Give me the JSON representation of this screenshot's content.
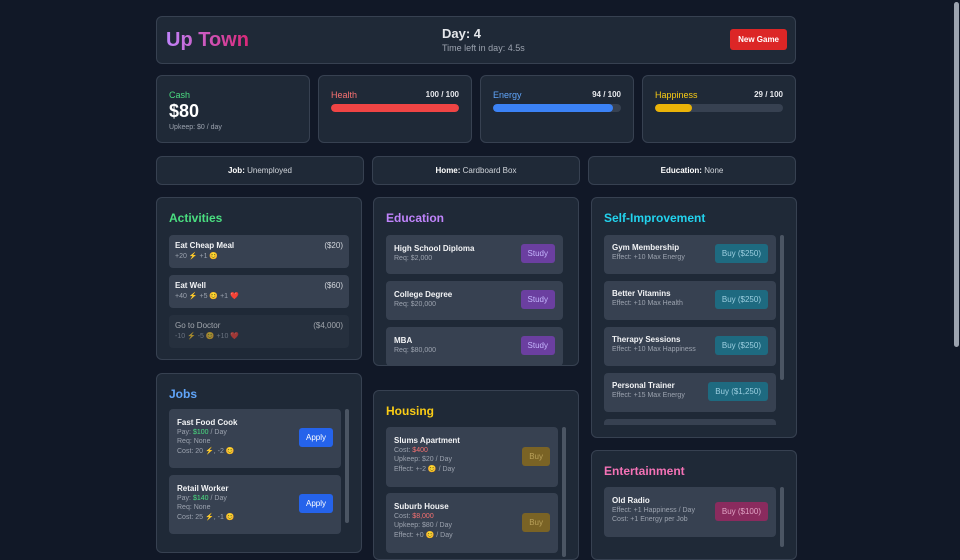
{
  "header": {
    "title": "Up Town",
    "day": "Day: 4",
    "time_left": "Time left in day: 4.5s",
    "new_game": "New Game"
  },
  "stats": {
    "cash": {
      "label": "Cash",
      "value": "$80",
      "upkeep": "Upkeep: $0 / day"
    },
    "health": {
      "label": "Health",
      "value": "100 / 100",
      "percent": 100,
      "color": "#ef4444"
    },
    "energy": {
      "label": "Energy",
      "value": "94 / 100",
      "percent": 94,
      "color": "#3b82f6"
    },
    "happiness": {
      "label": "Happiness",
      "value": "29 / 100",
      "percent": 29,
      "color": "#eab308"
    }
  },
  "info": {
    "job_label": "Job:",
    "job": "Unemployed",
    "home_label": "Home:",
    "home": "Cardboard Box",
    "edu_label": "Education:",
    "edu": "None"
  },
  "activities": {
    "title": "Activities",
    "items": [
      {
        "name": "Eat Cheap Meal",
        "cost": "($20)",
        "effect": "+20 ⚡ +1 😊"
      },
      {
        "name": "Eat Well",
        "cost": "($60)",
        "effect": "+40 ⚡ +5 😊 +1 ❤️"
      },
      {
        "name": "Go to Doctor",
        "cost": "($4,000)",
        "effect": "-10 ⚡ -5 😊 +10 ❤️"
      }
    ]
  },
  "jobs": {
    "title": "Jobs",
    "items": [
      {
        "name": "Fast Food Cook",
        "pay_label": "Pay:",
        "pay": "$100",
        "pay_unit": "/ Day",
        "req": "Req: None",
        "cost": "Cost: 20 ⚡, -2 😊",
        "button": "Apply"
      },
      {
        "name": "Retail Worker",
        "pay_label": "Pay:",
        "pay": "$140",
        "pay_unit": "/ Day",
        "req": "Req: None",
        "cost": "Cost: 25 ⚡, -1 😊",
        "button": "Apply"
      }
    ]
  },
  "education": {
    "title": "Education",
    "items": [
      {
        "name": "High School Diploma",
        "req": "Req: $2,000",
        "button": "Study"
      },
      {
        "name": "College Degree",
        "req": "Req: $20,000",
        "button": "Study"
      },
      {
        "name": "MBA",
        "req": "Req: $80,000",
        "button": "Study"
      }
    ]
  },
  "housing": {
    "title": "Housing",
    "items": [
      {
        "name": "Slums Apartment",
        "cost_label": "Cost:",
        "cost": "$400",
        "upkeep": "Upkeep: $20 / Day",
        "effect": "Effect: +-2 😊 / Day",
        "button": "Buy"
      },
      {
        "name": "Suburb House",
        "cost_label": "Cost:",
        "cost": "$8,000",
        "upkeep": "Upkeep: $80 / Day",
        "effect": "Effect: +0 😊 / Day",
        "button": "Buy"
      }
    ]
  },
  "self_improvement": {
    "title": "Self-Improvement",
    "items": [
      {
        "name": "Gym Membership",
        "effect": "Effect: +10 Max Energy",
        "button": "Buy ($250)"
      },
      {
        "name": "Better Vitamins",
        "effect": "Effect: +10 Max Health",
        "button": "Buy ($250)"
      },
      {
        "name": "Therapy Sessions",
        "effect": "Effect: +10 Max Happiness",
        "button": "Buy ($250)"
      },
      {
        "name": "Personal Trainer",
        "effect": "Effect: +15 Max Energy",
        "button": "Buy ($1,250)"
      }
    ]
  },
  "entertainment": {
    "title": "Entertainment",
    "items": [
      {
        "name": "Old Radio",
        "effect": "Effect: +1 Happiness / Day",
        "cost": "Cost: +1 Energy per Job",
        "button": "Buy ($100)"
      }
    ]
  }
}
